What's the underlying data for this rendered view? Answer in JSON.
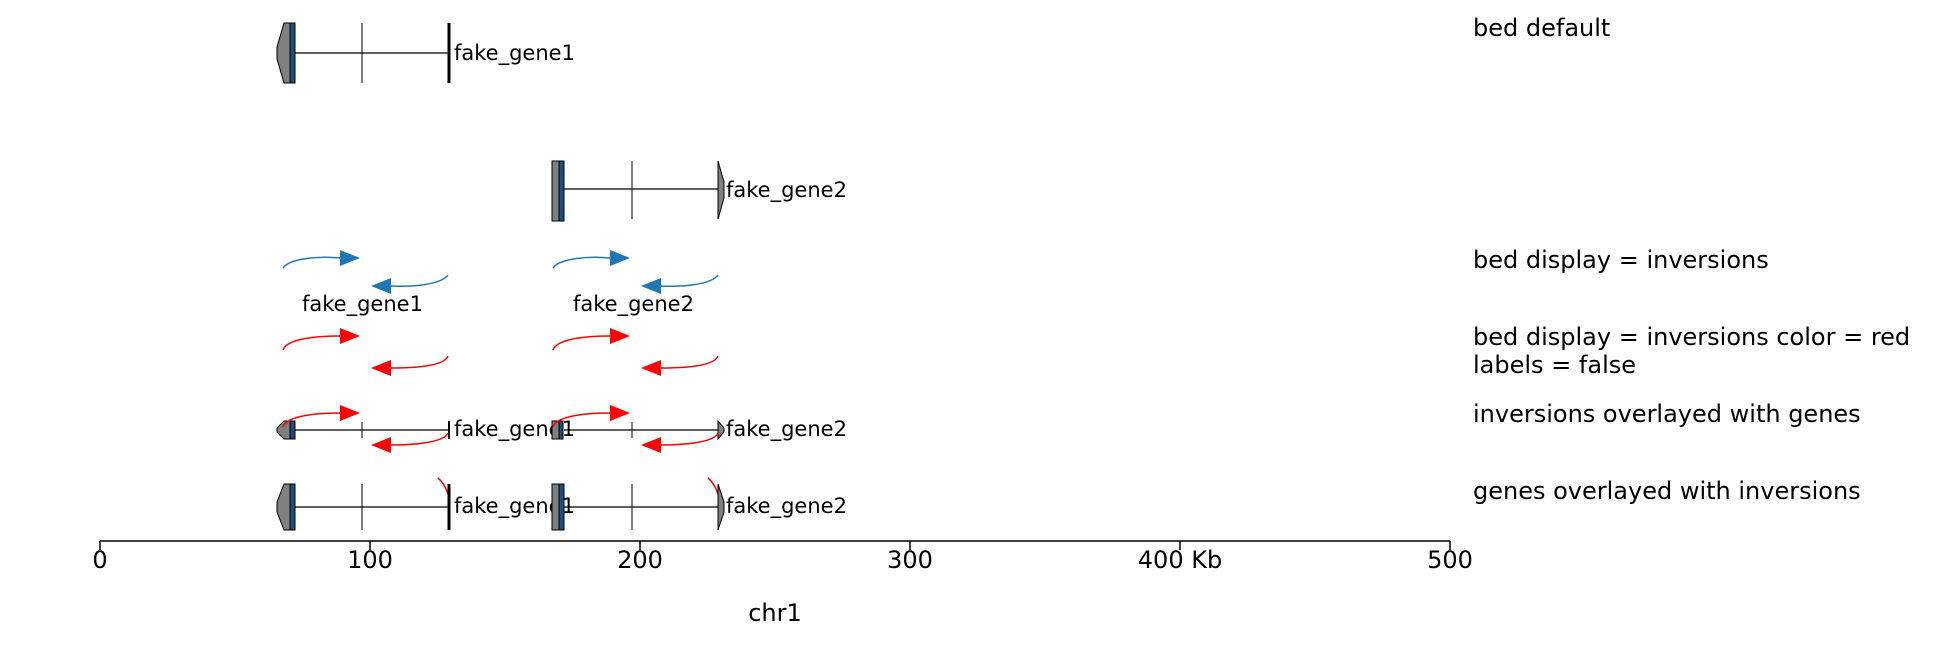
{
  "xaxis": {
    "ticks": [
      "0",
      "100",
      "200",
      "300",
      "400 Kb",
      "500"
    ],
    "label": "chr1",
    "range": [
      0,
      500
    ]
  },
  "tracks": {
    "bed_default": "bed default",
    "bed_inversions": "bed display = inversions",
    "bed_inversions_red_line1": "bed display = inversions color = red",
    "bed_inversions_red_line2": "labels = false",
    "inv_over_genes": "inversions overlayed with genes",
    "genes_over_inv": "genes overlayed with inversions"
  },
  "genes": [
    {
      "name": "fake_gene1",
      "start": 65,
      "end": 129,
      "strand": "-",
      "label_row1": "fake_gene1"
    },
    {
      "name": "fake_gene2",
      "start": 167,
      "end": 230,
      "strand": "+",
      "label_row2": "fake_gene2"
    }
  ],
  "inversion_labels": [
    "fake_gene1",
    "fake_gene2"
  ],
  "colors": {
    "inversion_default": "#1f77b4",
    "inversion_red": "#ff0000",
    "gene_utr": "#808080",
    "gene_cds": "#1f4e79"
  }
}
